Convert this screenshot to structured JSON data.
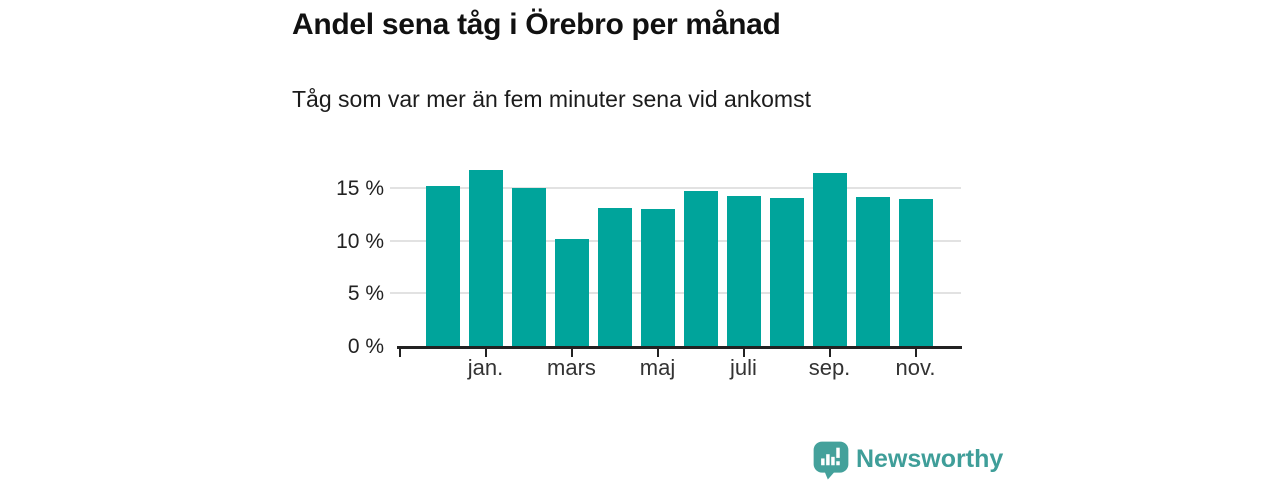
{
  "header": {
    "title": "Andel sena tåg i Örebro per månad",
    "subtitle": "Tåg som var mer än fem minuter sena vid ankomst"
  },
  "chart_data": {
    "type": "bar",
    "title": "Andel sena tåg i Örebro per månad",
    "subtitle": "Tåg som var mer än fem minuter sena vid ankomst",
    "unit": "%",
    "categories": [
      "",
      "jan.",
      "",
      "mars",
      "",
      "maj",
      "",
      "juli",
      "",
      "sep.",
      "",
      "nov."
    ],
    "values": [
      15.2,
      16.7,
      15.0,
      10.1,
      13.1,
      13.0,
      14.7,
      14.2,
      14.0,
      16.4,
      14.1,
      13.9
    ],
    "bar_color": "#00a49b",
    "y_axis": {
      "tick_values": [
        0,
        5,
        10,
        15
      ],
      "tick_labels": [
        "0 %",
        "5 %",
        "10 %",
        "15 %"
      ],
      "range": [
        0,
        17.6
      ]
    },
    "x_axis": {
      "visible_labels": [
        "jan.",
        "mars",
        "maj",
        "juli",
        "sep.",
        "nov."
      ],
      "label_every_n_bars": 2,
      "leading_unlabeled_tick": true
    },
    "grid": "horizontal",
    "legend": "none"
  },
  "footer": {
    "brand": "Newsworthy",
    "brand_text_color": "#3f9e99",
    "logo_icon": "speech-bubble-bar-chart-icon",
    "logo_color": "#44a19b"
  },
  "colors": {
    "bar": "#00a49b",
    "axis": "#222222",
    "grid": "#e2e2e2",
    "text": "#111111"
  }
}
